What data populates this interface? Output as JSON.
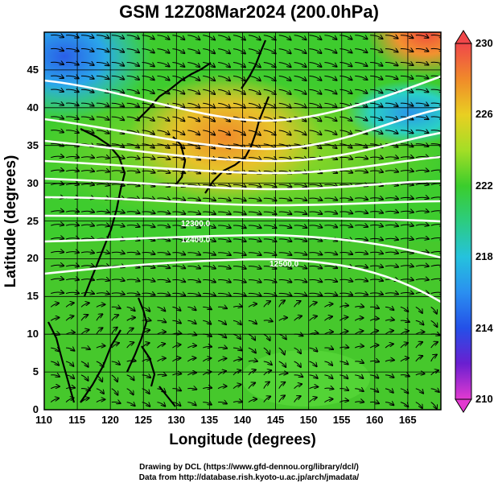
{
  "title": "GSM 12Z08Mar2024 (200.0hPa)",
  "axes": {
    "xlabel": "Longitude (degrees)",
    "ylabel": "Latitude  (degrees)",
    "xticks": [
      "110",
      "115",
      "120",
      "125",
      "130",
      "135",
      "140",
      "145",
      "150",
      "155",
      "160",
      "165"
    ],
    "yticks": [
      "0",
      "5",
      "10",
      "15",
      "20",
      "25",
      "30",
      "35",
      "40",
      "45"
    ],
    "xlim": [
      110,
      170
    ],
    "ylim": [
      0,
      50
    ]
  },
  "colorbar": {
    "ticks": [
      "230",
      "226",
      "222",
      "218",
      "214",
      "210"
    ],
    "range": [
      210,
      230
    ]
  },
  "contour_labels": [
    "12300.0",
    "12400.0",
    "12500.0"
  ],
  "credits": {
    "line1": "Drawing by DCL (https://www.gfd-dennou.org/library/dcl/)",
    "line2": "Data from http://database.rish.kyoto-u.ac.jp/arch/jmadata/"
  },
  "chart_data": {
    "type": "heatmap",
    "title": "GSM 12Z08Mar2024 (200.0hPa)",
    "xlabel": "Longitude (degrees)",
    "ylabel": "Latitude  (degrees)",
    "xlim": [
      110,
      170
    ],
    "ylim": [
      0,
      50
    ],
    "colorbar_range": [
      210,
      230
    ],
    "overlays": [
      "streamlines",
      "geopotential height contours (white)",
      "coastlines"
    ],
    "temperature_regions": [
      {
        "region": "NW corner (110-120E, 45-50N)",
        "value": 216
      },
      {
        "region": "NE corner (160-170E, 45-50N)",
        "value": 229
      },
      {
        "region": "Japan / Sea of Japan (130-145E, 30-40N)",
        "value": 227
      },
      {
        "region": "NE Pacific (155-165E, 38-42N)",
        "value": 219
      },
      {
        "region": "Subtropics (110-170E, 15-30N)",
        "value": 223
      },
      {
        "region": "Tropics (110-170E, 0-15N)",
        "value": 222
      }
    ],
    "contour_values": [
      12300,
      12400,
      12500
    ]
  }
}
